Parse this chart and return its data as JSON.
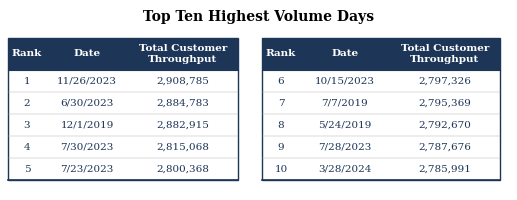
{
  "title": "Top Ten Highest Volume Days",
  "header_bg": "#1d3557",
  "header_fg": "#ffffff",
  "row_fg": "#1d3557",
  "border_color": "#1d3557",
  "left_table": {
    "headers": [
      "Rank",
      "Date",
      "Total Customer\nThroughput"
    ],
    "rows": [
      [
        "1",
        "11/26/2023",
        "2,908,785"
      ],
      [
        "2",
        "6/30/2023",
        "2,884,783"
      ],
      [
        "3",
        "12/1/2019",
        "2,882,915"
      ],
      [
        "4",
        "7/30/2023",
        "2,815,068"
      ],
      [
        "5",
        "7/23/2023",
        "2,800,368"
      ]
    ]
  },
  "right_table": {
    "headers": [
      "Rank",
      "Date",
      "Total Customer\nThroughput"
    ],
    "rows": [
      [
        "6",
        "10/15/2023",
        "2,797,326"
      ],
      [
        "7",
        "7/7/2019",
        "2,795,369"
      ],
      [
        "8",
        "5/24/2019",
        "2,792,670"
      ],
      [
        "9",
        "7/28/2023",
        "2,787,676"
      ],
      [
        "10",
        "3/28/2024",
        "2,785,991"
      ]
    ]
  },
  "title_fontsize": 10,
  "header_fontsize": 7.5,
  "cell_fontsize": 7.5,
  "fig_width": 5.17,
  "fig_height": 2.0,
  "dpi": 100
}
